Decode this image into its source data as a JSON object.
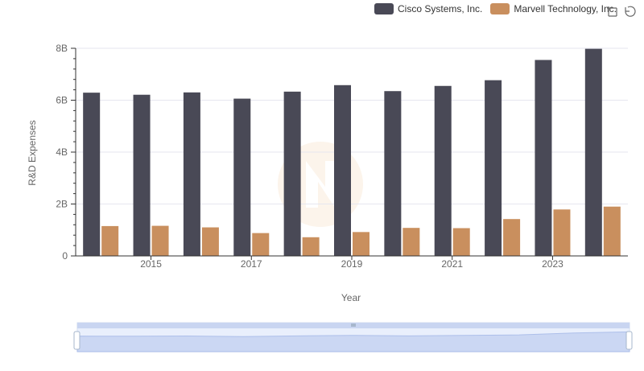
{
  "chart_data": {
    "type": "bar",
    "xlabel": "Year",
    "ylabel": "R&D Expenses",
    "x": [
      2014,
      2015,
      2016,
      2017,
      2018,
      2019,
      2020,
      2021,
      2022,
      2023,
      2024
    ],
    "x_tick_labels": [
      "2015",
      "2017",
      "2019",
      "2021",
      "2023"
    ],
    "y_tick_labels": [
      "0",
      "2B",
      "4B",
      "6B",
      "8B"
    ],
    "ylim": [
      0,
      8000000000
    ],
    "grid": "horizontal",
    "legend_position": "top-right",
    "series": [
      {
        "name": "Cisco Systems, Inc.",
        "color": "#494956",
        "values": [
          6290000000,
          6210000000,
          6300000000,
          6060000000,
          6330000000,
          6580000000,
          6350000000,
          6550000000,
          6770000000,
          7550000000,
          7980000000
        ]
      },
      {
        "name": "Marvell Technology, Inc.",
        "color": "#c98f5e",
        "values": [
          1150000000,
          1160000000,
          1100000000,
          880000000,
          720000000,
          920000000,
          1080000000,
          1070000000,
          1420000000,
          1790000000,
          1900000000
        ]
      }
    ]
  },
  "toolbox": {
    "zoom_icon": "zoom-icon",
    "reset_icon": "restore-icon"
  }
}
